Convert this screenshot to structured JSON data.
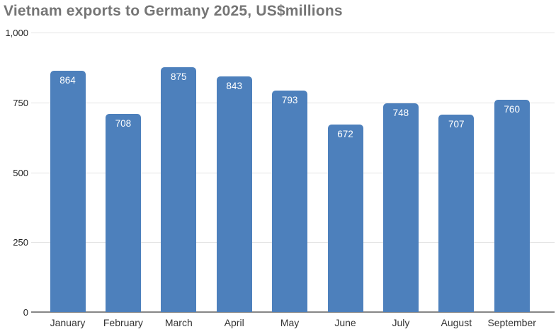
{
  "chart_data": {
    "type": "bar",
    "title": "Vietnam exports to Germany 2025, US$millions",
    "categories": [
      "January",
      "February",
      "March",
      "April",
      "May",
      "June",
      "July",
      "August",
      "September"
    ],
    "values": [
      864,
      708,
      875,
      843,
      793,
      672,
      748,
      707,
      760
    ],
    "value_labels": [
      "864",
      "708",
      "875",
      "843",
      "793",
      "672",
      "748",
      "707",
      "760"
    ],
    "xlabel": "",
    "ylabel": "",
    "ylim": [
      0,
      1000
    ],
    "yticks": [
      0,
      250,
      500,
      750,
      1000
    ],
    "ytick_labels": [
      "0",
      "250",
      "500",
      "750",
      "1,000"
    ],
    "grid": true,
    "legend": "none",
    "colors": {
      "bar_fill": "#4d80bc",
      "bar_value_text": "#ffffff",
      "title_text": "#757575",
      "axis_text": "#333333",
      "tick_text": "#222222",
      "gridline": "#e3e3e3",
      "baseline": "#878787",
      "background": "#ffffff"
    }
  }
}
